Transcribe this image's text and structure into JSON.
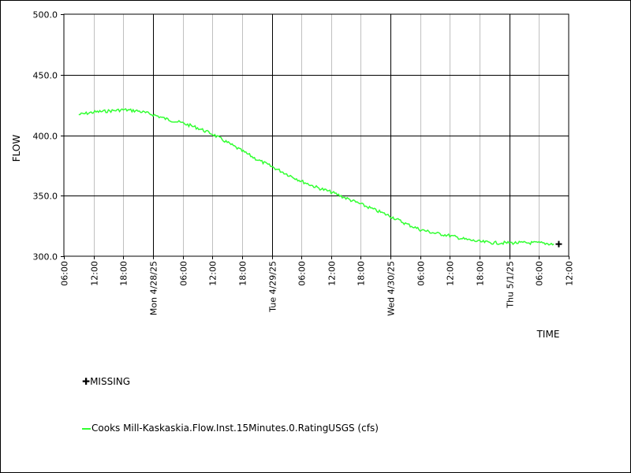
{
  "chart_data": {
    "type": "line",
    "ylabel": "FLOW",
    "xlabel": "TIME",
    "ylim": [
      300,
      500
    ],
    "xlim": [
      "2025-04-27T06:00",
      "2025-05-01T12:00"
    ],
    "y_ticks": [
      "500.0",
      "450.0",
      "400.0",
      "350.0",
      "300.0"
    ],
    "x_ticks": [
      {
        "t": "2025-04-27T06:00",
        "label": "06:00"
      },
      {
        "t": "2025-04-27T12:00",
        "label": "12:00"
      },
      {
        "t": "2025-04-27T18:00",
        "label": "18:00"
      },
      {
        "t": "2025-04-28T00:00",
        "label": "Mon 4/28/25"
      },
      {
        "t": "2025-04-28T06:00",
        "label": "06:00"
      },
      {
        "t": "2025-04-28T12:00",
        "label": "12:00"
      },
      {
        "t": "2025-04-28T18:00",
        "label": "18:00"
      },
      {
        "t": "2025-04-29T00:00",
        "label": "Tue 4/29/25"
      },
      {
        "t": "2025-04-29T06:00",
        "label": "06:00"
      },
      {
        "t": "2025-04-29T12:00",
        "label": "12:00"
      },
      {
        "t": "2025-04-29T18:00",
        "label": "18:00"
      },
      {
        "t": "2025-04-30T00:00",
        "label": "Wed 4/30/25"
      },
      {
        "t": "2025-04-30T06:00",
        "label": "06:00"
      },
      {
        "t": "2025-04-30T12:00",
        "label": "12:00"
      },
      {
        "t": "2025-04-30T18:00",
        "label": "18:00"
      },
      {
        "t": "2025-05-01T00:00",
        "label": "Thu 5/1/25"
      },
      {
        "t": "2025-05-01T06:00",
        "label": "06:00"
      },
      {
        "t": "2025-05-01T12:00",
        "label": "12:00"
      }
    ],
    "grid": true,
    "series": [
      {
        "name": "Cooks Mill-Kaskaskia.Flow.Inst.15Minutes.0.RatingUSGS (cfs)",
        "color": "#33ff33",
        "x": [
          "2025-04-27T09:00",
          "2025-04-27T12:00",
          "2025-04-27T15:00",
          "2025-04-27T18:00",
          "2025-04-27T21:00",
          "2025-04-28T00:00",
          "2025-04-28T03:00",
          "2025-04-28T06:00",
          "2025-04-28T09:00",
          "2025-04-28T12:00",
          "2025-04-28T15:00",
          "2025-04-28T18:00",
          "2025-04-28T21:00",
          "2025-04-29T00:00",
          "2025-04-29T03:00",
          "2025-04-29T06:00",
          "2025-04-29T09:00",
          "2025-04-29T12:00",
          "2025-04-29T15:00",
          "2025-04-29T18:00",
          "2025-04-29T21:00",
          "2025-04-30T00:00",
          "2025-04-30T03:00",
          "2025-04-30T06:00",
          "2025-04-30T09:00",
          "2025-04-30T12:00",
          "2025-04-30T15:00",
          "2025-04-30T18:00",
          "2025-04-30T21:00",
          "2025-05-01T00:00",
          "2025-05-01T03:00",
          "2025-05-01T06:00",
          "2025-05-01T09:00"
        ],
        "y": [
          417,
          419,
          420,
          421,
          420,
          417,
          413,
          410,
          406,
          401,
          394,
          387,
          380,
          374,
          368,
          362,
          357,
          353,
          348,
          343,
          338,
          333,
          327,
          322,
          319,
          317,
          314,
          312,
          311,
          311,
          311,
          311,
          310
        ]
      }
    ],
    "missing": {
      "label": "MISSING",
      "x": "2025-05-01T10:00",
      "y": 310
    }
  },
  "legend": [
    {
      "symbol": "✚",
      "label": "MISSING",
      "color": "#000000"
    },
    {
      "symbol": "line",
      "label": "Cooks Mill-Kaskaskia.Flow.Inst.15Minutes.0.RatingUSGS (cfs)",
      "color": "#33ff33"
    }
  ]
}
